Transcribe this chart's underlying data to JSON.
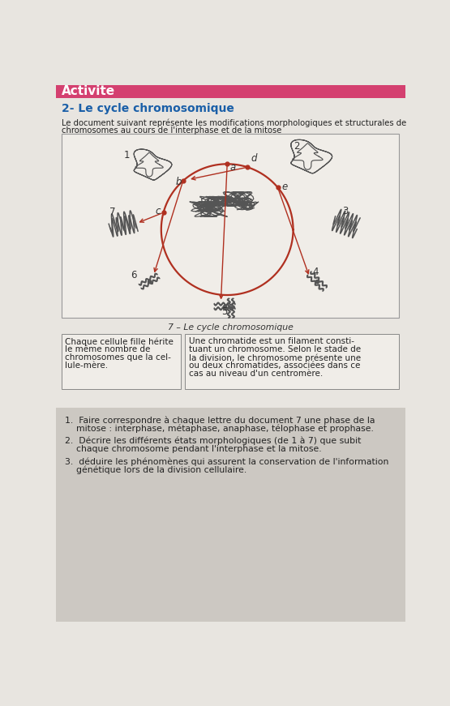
{
  "page_bg": "#e8e5e0",
  "header_bg": "#d44070",
  "header_text": "Activite",
  "header_text_color": "#ffffff",
  "title_section": "2- Le cycle chromosomique",
  "title_color": "#1a5fa8",
  "intro_line1": "Le document suivant représente les modifications morphologiques et structurales de",
  "intro_line2": "chromosomes au cours de l'interphase et de la mitose",
  "figure_caption": "7 – Le cycle chromosomique",
  "box1_lines": [
    "Chaque cellule fille hérite",
    "le même nombre de",
    "chromosomes que la cel-",
    "lule-mère."
  ],
  "box2_lines": [
    "Une chromatide est un filament consti-",
    "tuant un chromosome. Selon le stade de",
    "la division, le chromosome présente une",
    "ou deux chromatides, associées dans ce",
    "cas au niveau d'un centromère."
  ],
  "questions_bg": "#ccc8c2",
  "q1_line1": "1.  Faire correspondre à chaque lettre du document 7 une phase de la",
  "q1_line2": "    mitose : interphase, métaphase, anaphase, télophase et prophase.",
  "q2_line1": "2.  Décrire les différents états morphologiques (de 1 à 7) que subit",
  "q2_line2": "    chaque chromosome pendant l'interphase et la mitose.",
  "q3_line1": "3.  déduire les phénomènes qui assurent la conservation de l'information",
  "q3_line2": "    génétique lors de la division cellulaire.",
  "circle_color": "#b03020",
  "chrom_color": "#555555",
  "chrom_fill": "#bbbbbb"
}
